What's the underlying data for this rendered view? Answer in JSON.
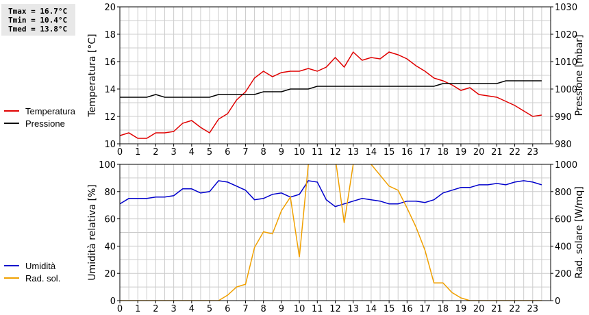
{
  "stats": {
    "tmax": "Tmax = 16.7°C",
    "tmin": "Tmin = 10.4°C",
    "tmed": "Tmed = 13.8°C"
  },
  "colors": {
    "temperature": "#e00000",
    "pressure": "#000000",
    "humidity": "#0000cc",
    "radiation": "#f0a000",
    "grid": "#cccccc"
  },
  "chart_data": [
    {
      "type": "line",
      "x": [
        0,
        0.5,
        1,
        1.5,
        2,
        2.5,
        3,
        3.5,
        4,
        4.5,
        5,
        5.5,
        6,
        6.5,
        7,
        7.5,
        8,
        8.5,
        9,
        9.5,
        10,
        10.5,
        11,
        11.5,
        12,
        12.5,
        13,
        13.5,
        14,
        14.5,
        15,
        15.5,
        16,
        16.5,
        17,
        17.5,
        18,
        18.5,
        19,
        19.5,
        20,
        20.5,
        21,
        21.5,
        22,
        22.5,
        23,
        23.5
      ],
      "xticks": [
        "0",
        "1",
        "2",
        "3",
        "4",
        "5",
        "6",
        "7",
        "8",
        "9",
        "10",
        "11",
        "12",
        "13",
        "14",
        "15",
        "16",
        "17",
        "18",
        "19",
        "20",
        "21",
        "22",
        "23"
      ],
      "xlim": [
        0,
        24
      ],
      "ylabel": "Temperatura [°C]",
      "ylim": [
        10,
        20
      ],
      "yticks": [
        "10",
        "12",
        "14",
        "16",
        "18",
        "20"
      ],
      "y2label": "Pressione [mbar]",
      "y2lim": [
        980,
        1030
      ],
      "y2ticks": [
        "980",
        "990",
        "1000",
        "1010",
        "1020",
        "1030"
      ],
      "grid": true,
      "legend": "left",
      "series": [
        {
          "name": "Temperatura",
          "axis": "left",
          "values": [
            10.6,
            10.8,
            10.4,
            10.4,
            10.8,
            10.8,
            10.9,
            11.5,
            11.7,
            11.2,
            10.8,
            11.8,
            12.2,
            13.2,
            13.8,
            14.8,
            15.3,
            14.9,
            15.2,
            15.3,
            15.3,
            15.5,
            15.3,
            15.6,
            16.3,
            15.6,
            16.7,
            16.1,
            16.3,
            16.2,
            16.7,
            16.5,
            16.2,
            15.7,
            15.3,
            14.8,
            14.6,
            14.3,
            13.9,
            14.1,
            13.6,
            13.5,
            13.4,
            13.1,
            12.8,
            12.4,
            12.0,
            12.1
          ]
        },
        {
          "name": "Pressione",
          "axis": "right",
          "values": [
            997,
            997,
            997,
            997,
            998,
            997,
            997,
            997,
            997,
            997,
            997,
            998,
            998,
            998,
            998,
            998,
            999,
            999,
            999,
            1000,
            1000,
            1000,
            1001,
            1001,
            1001,
            1001,
            1001,
            1001,
            1001,
            1001,
            1001,
            1001,
            1001,
            1001,
            1001,
            1001,
            1002,
            1002,
            1002,
            1002,
            1002,
            1002,
            1002,
            1003,
            1003,
            1003,
            1003,
            1003
          ]
        }
      ]
    },
    {
      "type": "line",
      "x": [
        0,
        0.5,
        1,
        1.5,
        2,
        2.5,
        3,
        3.5,
        4,
        4.5,
        5,
        5.5,
        6,
        6.5,
        7,
        7.5,
        8,
        8.5,
        9,
        9.5,
        10,
        10.5,
        11,
        11.5,
        12,
        12.5,
        13,
        13.5,
        14,
        14.5,
        15,
        15.5,
        16,
        16.5,
        17,
        17.5,
        18,
        18.5,
        19,
        19.5,
        20,
        20.5,
        21,
        21.5,
        22,
        22.5,
        23,
        23.5
      ],
      "xticks": [
        "0",
        "1",
        "2",
        "3",
        "4",
        "5",
        "6",
        "7",
        "8",
        "9",
        "10",
        "11",
        "12",
        "13",
        "14",
        "15",
        "16",
        "17",
        "18",
        "19",
        "20",
        "21",
        "22",
        "23"
      ],
      "xlim": [
        0,
        24
      ],
      "ylabel": "Umidità relativa [%]",
      "ylim": [
        0,
        100
      ],
      "yticks": [
        "0",
        "20",
        "40",
        "60",
        "80",
        "100"
      ],
      "y2label": "Rad. solare [W/mq]",
      "y2lim": [
        0,
        1000
      ],
      "y2ticks": [
        "0",
        "200",
        "400",
        "600",
        "800",
        "1000"
      ],
      "grid": true,
      "legend": "left",
      "series": [
        {
          "name": "Umidità",
          "axis": "left",
          "values": [
            71,
            75,
            75,
            75,
            76,
            76,
            77,
            82,
            82,
            79,
            80,
            88,
            87,
            84,
            81,
            74,
            75,
            78,
            79,
            76,
            78,
            88,
            87,
            74,
            69,
            71,
            73,
            75,
            74,
            73,
            71,
            71,
            73,
            73,
            72,
            74,
            79,
            81,
            83,
            83,
            85,
            85,
            86,
            85,
            87,
            88,
            87,
            85
          ]
        },
        {
          "name": "Rad. sol.",
          "axis": "right",
          "values": [
            0,
            0,
            0,
            0,
            0,
            0,
            0,
            0,
            0,
            0,
            0,
            0,
            40,
            100,
            120,
            390,
            505,
            490,
            660,
            760,
            320,
            1000,
            1050,
            1000,
            1050,
            570,
            1000,
            1020,
            1000,
            920,
            840,
            810,
            680,
            540,
            370,
            130,
            130,
            60,
            20,
            0,
            0,
            0,
            0,
            0,
            0,
            0,
            0,
            0
          ]
        }
      ]
    }
  ]
}
